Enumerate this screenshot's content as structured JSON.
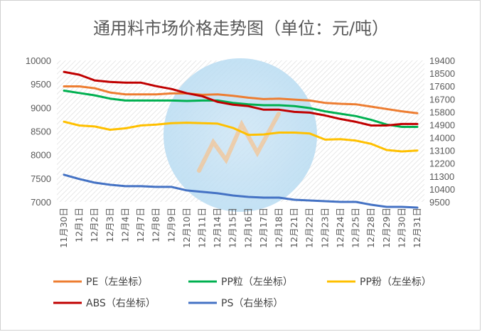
{
  "chart_data": {
    "type": "line",
    "title": "通用料市场价格走势图（单位：元/吨）",
    "categories": [
      "11月30日",
      "12月1日",
      "12月2日",
      "12月3日",
      "12月4日",
      "12月7日",
      "12月8日",
      "12月9日",
      "12月10日",
      "12月11日",
      "12月14日",
      "12月15日",
      "12月16日",
      "12月17日",
      "12月18日",
      "12月21日",
      "12月22日",
      "12月23日",
      "12月24日",
      "12月25日",
      "12月28日",
      "12月29日",
      "12月30日",
      "12月31日"
    ],
    "left_axis": {
      "min": 7000,
      "max": 10000,
      "ticks": [
        "10000",
        "9500",
        "9000",
        "8500",
        "8000",
        "7500",
        "7000"
      ]
    },
    "right_axis": {
      "min": 9500,
      "max": 19400,
      "ticks": [
        "19400",
        "18500",
        "17600",
        "16700",
        "15800",
        "14900",
        "14000",
        "13100",
        "12200",
        "11300",
        "10400",
        "9500"
      ]
    },
    "series": [
      {
        "name": "PE",
        "legend": "PE（左坐标）",
        "axis": "left",
        "color": "#ED7D31",
        "values": [
          9450,
          9450,
          9410,
          9320,
          9280,
          9280,
          9280,
          9300,
          9300,
          9270,
          9280,
          9250,
          9210,
          9180,
          9190,
          9170,
          9150,
          9100,
          9080,
          9070,
          9020,
          8970,
          8920,
          8880
        ]
      },
      {
        "name": "PP粒",
        "legend": "PP粒（左坐标）",
        "axis": "left",
        "color": "#00B050",
        "values": [
          9360,
          9310,
          9260,
          9190,
          9150,
          9150,
          9150,
          9150,
          9140,
          9150,
          9150,
          9100,
          9070,
          9050,
          9050,
          9030,
          8990,
          8920,
          8870,
          8820,
          8740,
          8640,
          8590,
          8590
        ]
      },
      {
        "name": "PP粉",
        "legend": "PP粉（左坐标）",
        "axis": "left",
        "color": "#FFC000",
        "values": [
          8700,
          8620,
          8600,
          8530,
          8560,
          8620,
          8640,
          8670,
          8680,
          8670,
          8660,
          8570,
          8420,
          8430,
          8470,
          8470,
          8450,
          8320,
          8330,
          8300,
          8230,
          8100,
          8070,
          8090
        ]
      },
      {
        "name": "ABS",
        "legend": "ABS（右坐标）",
        "axis": "right",
        "color": "#C00000",
        "values": [
          18600,
          18400,
          18000,
          17900,
          17850,
          17850,
          17600,
          17400,
          17100,
          16900,
          16500,
          16300,
          16200,
          15950,
          15950,
          15800,
          15750,
          15550,
          15300,
          15100,
          14850,
          14850,
          14950,
          14950
        ]
      },
      {
        "name": "PS",
        "legend": "PS（右坐标）",
        "axis": "right",
        "color": "#4472C4",
        "values": [
          11400,
          11100,
          10850,
          10700,
          10600,
          10600,
          10550,
          10550,
          10300,
          10200,
          10100,
          9950,
          9850,
          9800,
          9800,
          9650,
          9600,
          9550,
          9500,
          9500,
          9300,
          9150,
          9150,
          9100
        ]
      }
    ]
  }
}
